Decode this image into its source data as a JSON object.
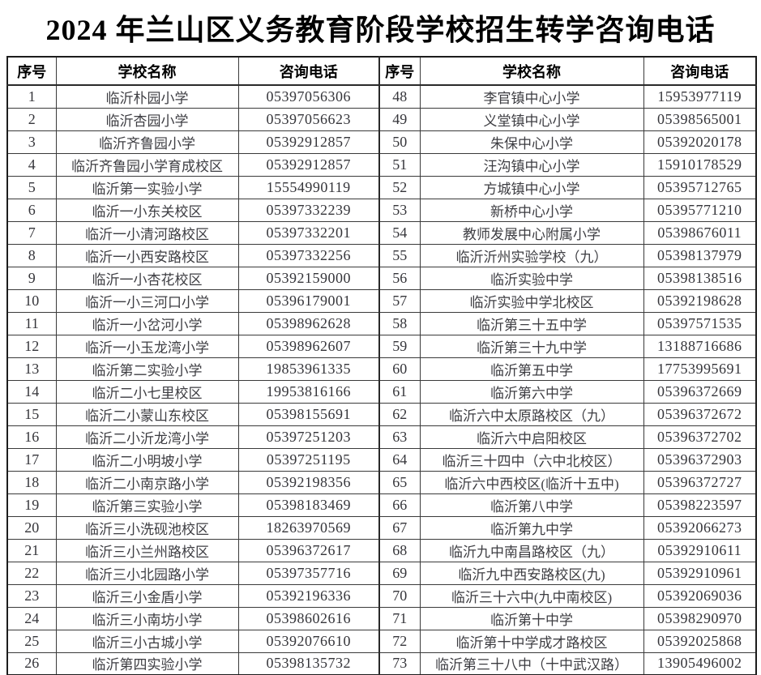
{
  "title": "2024 年兰山区义务教育阶段学校招生转学咨询电话",
  "columns": {
    "serial": "序号",
    "school": "学校名称",
    "phone": "咨询电话"
  },
  "left_rows": [
    {
      "no": "1",
      "school": "临沂朴园小学",
      "phone": "05397056306"
    },
    {
      "no": "2",
      "school": "临沂杏园小学",
      "phone": "05397056623"
    },
    {
      "no": "3",
      "school": "临沂齐鲁园小学",
      "phone": "05392912857"
    },
    {
      "no": "4",
      "school": "临沂齐鲁园小学育成校区",
      "phone": "05392912857"
    },
    {
      "no": "5",
      "school": "临沂第一实验小学",
      "phone": "15554990119"
    },
    {
      "no": "6",
      "school": "临沂一小东关校区",
      "phone": "05397332239"
    },
    {
      "no": "7",
      "school": "临沂一小清河路校区",
      "phone": "05397332201"
    },
    {
      "no": "8",
      "school": "临沂一小西安路校区",
      "phone": "05397332256"
    },
    {
      "no": "9",
      "school": "临沂一小杏花校区",
      "phone": "05392159000"
    },
    {
      "no": "10",
      "school": "临沂一小三河口小学",
      "phone": "05396179001"
    },
    {
      "no": "11",
      "school": "临沂一小岔河小学",
      "phone": "05398962628"
    },
    {
      "no": "12",
      "school": "临沂一小玉龙湾小学",
      "phone": "05398962607"
    },
    {
      "no": "13",
      "school": "临沂第二实验小学",
      "phone": "19853961335"
    },
    {
      "no": "14",
      "school": "临沂二小七里校区",
      "phone": "19953816166"
    },
    {
      "no": "15",
      "school": "临沂二小蒙山东校区",
      "phone": "05398155691"
    },
    {
      "no": "16",
      "school": "临沂二小沂龙湾小学",
      "phone": "05397251203"
    },
    {
      "no": "17",
      "school": "临沂二小明坡小学",
      "phone": "05397251195"
    },
    {
      "no": "18",
      "school": "临沂二小南京路小学",
      "phone": "05392198356"
    },
    {
      "no": "19",
      "school": "临沂第三实验小学",
      "phone": "05398183469"
    },
    {
      "no": "20",
      "school": "临沂三小洗砚池校区",
      "phone": "18263970569"
    },
    {
      "no": "21",
      "school": "临沂三小兰州路校区",
      "phone": "05396372617"
    },
    {
      "no": "22",
      "school": "临沂三小北园路小学",
      "phone": "05397357716"
    },
    {
      "no": "23",
      "school": "临沂三小金盾小学",
      "phone": "05392196336"
    },
    {
      "no": "24",
      "school": "临沂三小南坊小学",
      "phone": "05398602616"
    },
    {
      "no": "25",
      "school": "临沂三小古城小学",
      "phone": "05392076610"
    },
    {
      "no": "26",
      "school": "临沂第四实验小学",
      "phone": "05398135732"
    }
  ],
  "right_rows": [
    {
      "no": "48",
      "school": "李官镇中心小学",
      "phone": "15953977119"
    },
    {
      "no": "49",
      "school": "义堂镇中心小学",
      "phone": "05398565001"
    },
    {
      "no": "50",
      "school": "朱保中心小学",
      "phone": "05392020178"
    },
    {
      "no": "51",
      "school": "汪沟镇中心小学",
      "phone": "15910178529"
    },
    {
      "no": "52",
      "school": "方城镇中心小学",
      "phone": "05395712765"
    },
    {
      "no": "53",
      "school": "新桥中心小学",
      "phone": "05395771210"
    },
    {
      "no": "54",
      "school": "教师发展中心附属小学",
      "phone": "05398676011"
    },
    {
      "no": "55",
      "school": "临沂沂州实验学校（九）",
      "phone": "05398137979"
    },
    {
      "no": "56",
      "school": "临沂实验中学",
      "phone": "05398138516"
    },
    {
      "no": "57",
      "school": "临沂实验中学北校区",
      "phone": "05392198628"
    },
    {
      "no": "58",
      "school": "临沂第三十五中学",
      "phone": "05397571535"
    },
    {
      "no": "59",
      "school": "临沂第三十九中学",
      "phone": "13188716686"
    },
    {
      "no": "60",
      "school": "临沂第五中学",
      "phone": "17753995691"
    },
    {
      "no": "61",
      "school": "临沂第六中学",
      "phone": "05396372669"
    },
    {
      "no": "62",
      "school": "临沂六中太原路校区（九）",
      "phone": "05396372672"
    },
    {
      "no": "63",
      "school": "临沂六中启阳校区",
      "phone": "05396372702"
    },
    {
      "no": "64",
      "school": "临沂三十四中（六中北校区）",
      "phone": "05396372903"
    },
    {
      "no": "65",
      "school": "临沂六中西校区(临沂十五中)",
      "phone": "05396372727"
    },
    {
      "no": "66",
      "school": "临沂第八中学",
      "phone": "05398223597"
    },
    {
      "no": "67",
      "school": "临沂第九中学",
      "phone": "05392066273"
    },
    {
      "no": "68",
      "school": "临沂九中南昌路校区（九）",
      "phone": "05392910611"
    },
    {
      "no": "69",
      "school": "临沂九中西安路校区(九)",
      "phone": "05392910961"
    },
    {
      "no": "70",
      "school": "临沂三十六中(九中南校区)",
      "phone": "05392069036"
    },
    {
      "no": "71",
      "school": "临沂第十中学",
      "phone": "05398290970"
    },
    {
      "no": "72",
      "school": "临沂第十中学成才路校区",
      "phone": "05392025868"
    },
    {
      "no": "73",
      "school": "临沂第三十八中（十中武汉路）",
      "phone": "13905496002"
    }
  ]
}
